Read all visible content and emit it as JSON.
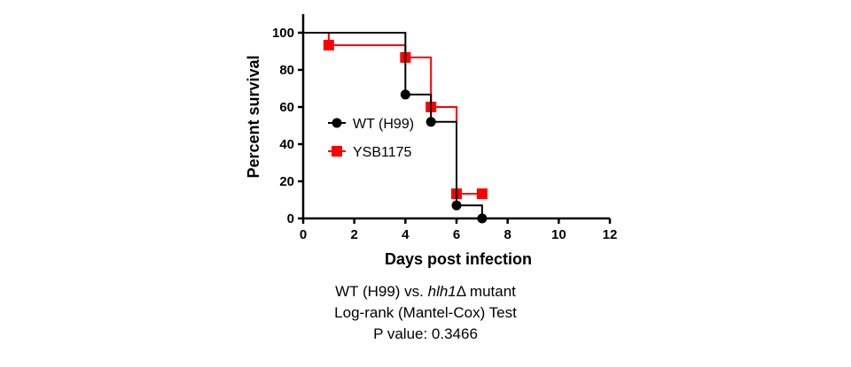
{
  "chart_data": {
    "type": "line",
    "step": true,
    "xlabel": "Days post infection",
    "ylabel": "Percent survival",
    "xlim": [
      0,
      12
    ],
    "ylim": [
      0,
      100
    ],
    "xticks": [
      0,
      2,
      4,
      6,
      8,
      10,
      12
    ],
    "yticks": [
      0,
      20,
      40,
      60,
      80,
      100
    ],
    "grid": false,
    "legend_position": "left-middle",
    "series": [
      {
        "name": "WT (H99)",
        "color": "#000000",
        "marker": "circle",
        "steps": [
          [
            0,
            100
          ],
          [
            4,
            100
          ],
          [
            4,
            66.7
          ],
          [
            5,
            66.7
          ],
          [
            5,
            52
          ],
          [
            6,
            52
          ],
          [
            6,
            7
          ],
          [
            7,
            7
          ],
          [
            7,
            0
          ]
        ],
        "markers": [
          [
            4,
            66.7
          ],
          [
            5,
            52
          ],
          [
            6,
            7
          ],
          [
            7,
            0
          ]
        ]
      },
      {
        "name": "YSB1175",
        "color": "#ff0000",
        "marker": "square",
        "steps": [
          [
            1,
            100
          ],
          [
            1,
            93.3
          ],
          [
            4,
            93.3
          ],
          [
            4,
            86.7
          ],
          [
            5,
            86.7
          ],
          [
            5,
            60
          ],
          [
            6,
            60
          ],
          [
            6,
            13.3
          ],
          [
            7,
            13.3
          ]
        ],
        "markers": [
          [
            1,
            93.3
          ],
          [
            4,
            86.7
          ],
          [
            5,
            60
          ],
          [
            6,
            13.3
          ],
          [
            7,
            13.3
          ]
        ]
      }
    ]
  },
  "caption": {
    "line1_prefix": "WT (H99) vs. ",
    "line1_italic": "hlh1",
    "line1_suffix": "Δ mutant",
    "line2": "Log-rank (Mantel-Cox) Test",
    "line3": "P value: 0.3466"
  }
}
